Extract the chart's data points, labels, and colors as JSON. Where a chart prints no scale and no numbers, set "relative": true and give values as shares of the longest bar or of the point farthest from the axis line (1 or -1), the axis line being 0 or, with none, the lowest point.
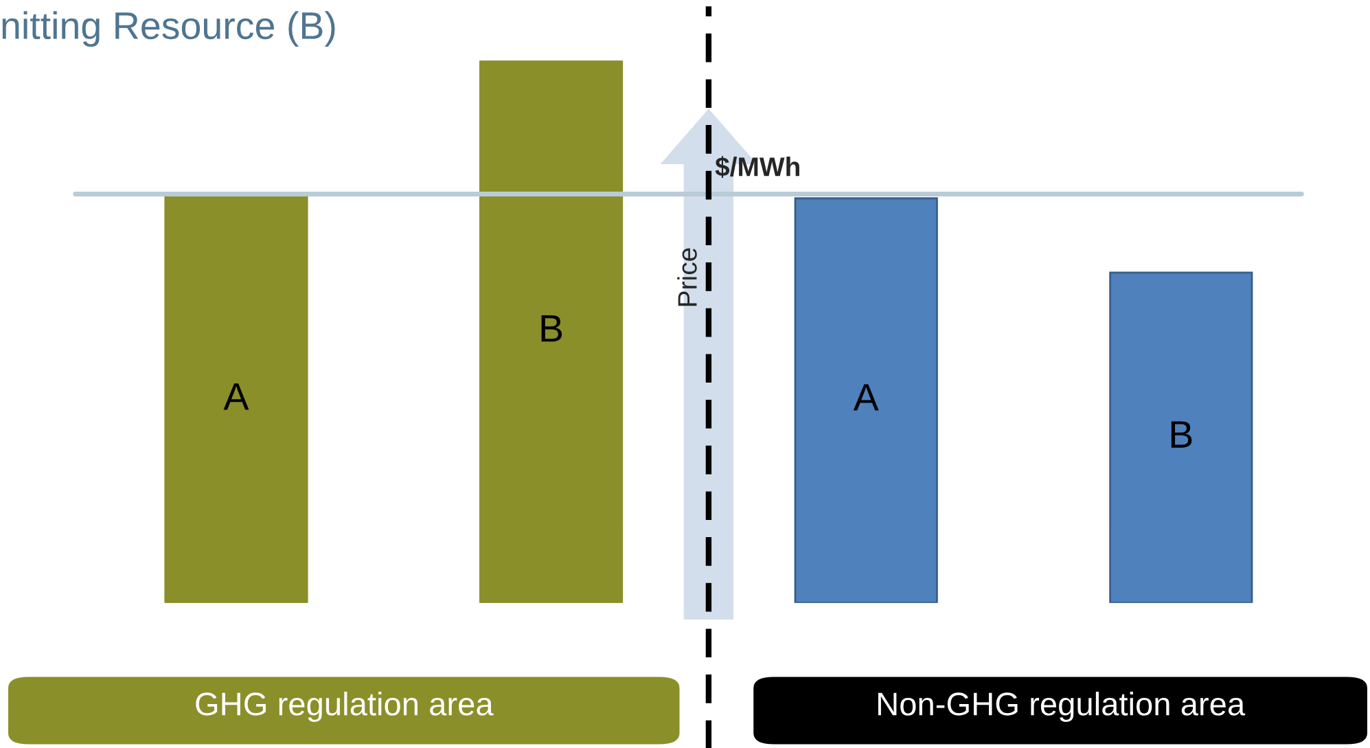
{
  "chart_data": {
    "type": "bar",
    "title": "nitting Resource (B)",
    "ylabel": "Price",
    "relative": true,
    "categories": [
      "A",
      "B",
      "A",
      "B"
    ],
    "values": [
      0.749,
      1,
      0.746,
      0.609
    ],
    "colors": [
      "#8a8f2a",
      "#8a8f2a",
      "#4f81bd",
      "#4f81bd"
    ],
    "ref_lines": [
      {
        "axis": "y",
        "value": 0.754,
        "color": "#b8ccd8",
        "line_style": "solid"
      }
    ],
    "annotations": [
      "$/MWh",
      "GHG regulation area",
      "Non-GHG regulation area"
    ]
  }
}
